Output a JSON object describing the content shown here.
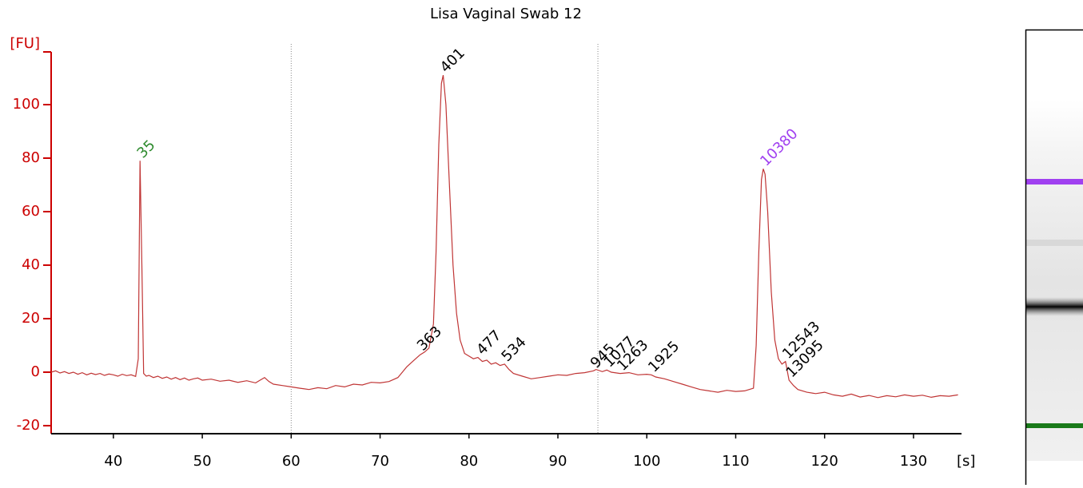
{
  "chart_data": {
    "type": "line",
    "title": "Lisa Vaginal Swab 12",
    "y_label": "[FU]",
    "x_label": "[s]",
    "color": "#c03535",
    "axis_color": "#cc0000",
    "xlim": [
      33,
      135.4
    ],
    "ylim": [
      -23,
      119.7
    ],
    "xticks": [
      40,
      50,
      60,
      70,
      80,
      90,
      100,
      110,
      120,
      130
    ],
    "yticks": [
      -20,
      0,
      20,
      40,
      60,
      80,
      100
    ],
    "reference_lines": [
      60,
      94.5
    ],
    "x": [
      33,
      33.5,
      34,
      34.5,
      35,
      35.5,
      36,
      36.5,
      37,
      37.5,
      38,
      38.5,
      39,
      39.5,
      40,
      40.5,
      41,
      41.5,
      42,
      42.5,
      42.8,
      43,
      43.2,
      43.4,
      43.7,
      44,
      44.5,
      45,
      45.5,
      46,
      46.5,
      47,
      47.5,
      48,
      48.5,
      49,
      49.5,
      50,
      51,
      52,
      53,
      54,
      55,
      56,
      56.5,
      57,
      57.5,
      58,
      59,
      60,
      61,
      62,
      63,
      64,
      65,
      66,
      67,
      68,
      69,
      70,
      71,
      72,
      72.5,
      73,
      73.5,
      74,
      74.5,
      75,
      75.5,
      76,
      76.3,
      76.6,
      76.9,
      77.1,
      77.4,
      77.8,
      78.2,
      78.6,
      79,
      79.5,
      80,
      80.5,
      81,
      81.5,
      82,
      82.5,
      83,
      83.5,
      84,
      84.5,
      85,
      86,
      87,
      88,
      89,
      90,
      91,
      92,
      93,
      94,
      94.3,
      95,
      95.5,
      96,
      97,
      98,
      99,
      100,
      100.5,
      101,
      102,
      103,
      104,
      105,
      106,
      107,
      108,
      109,
      110,
      111,
      112,
      112.3,
      112.6,
      112.9,
      113.1,
      113.3,
      113.6,
      114,
      114.4,
      114.8,
      115.2,
      115.6,
      116,
      116.5,
      117,
      118,
      119,
      120,
      121,
      122,
      123,
      124,
      125,
      126,
      127,
      128,
      129,
      130,
      131,
      132,
      133,
      134,
      135
    ],
    "values": [
      0,
      0.5,
      -0.3,
      0.2,
      -0.5,
      0,
      -0.8,
      -0.2,
      -1,
      -0.4,
      -0.9,
      -0.5,
      -1.2,
      -0.7,
      -1,
      -1.5,
      -0.8,
      -1.3,
      -1,
      -1.6,
      5,
      79,
      40,
      -0.5,
      -1.5,
      -1.2,
      -2,
      -1.5,
      -2.3,
      -1.8,
      -2.6,
      -2,
      -2.8,
      -2.2,
      -3,
      -2.5,
      -2.2,
      -3,
      -2.6,
      -3.4,
      -3,
      -3.8,
      -3.2,
      -4,
      -3,
      -2,
      -3.5,
      -4.5,
      -5,
      -5.5,
      -6,
      -6.5,
      -5.8,
      -6.2,
      -5,
      -5.5,
      -4.5,
      -4.8,
      -3.8,
      -4,
      -3.5,
      -2,
      0,
      2,
      3.5,
      5,
      6.5,
      7.5,
      9,
      18,
      45,
      85,
      108,
      111,
      100,
      70,
      40,
      22,
      12,
      7,
      6,
      5,
      5.5,
      4,
      4.5,
      3,
      3.5,
      2.5,
      3,
      1,
      -0.5,
      -1.5,
      -2.5,
      -2,
      -1.5,
      -1,
      -1.2,
      -0.5,
      -0.2,
      0.5,
      1,
      0.2,
      0.8,
      0,
      -0.5,
      -0.2,
      -1,
      -0.8,
      -1,
      -1.8,
      -2.5,
      -3.5,
      -4.5,
      -5.5,
      -6.5,
      -7,
      -7.5,
      -6.8,
      -7.2,
      -7,
      -6,
      10,
      45,
      72,
      76,
      74,
      60,
      30,
      12,
      5,
      3,
      4,
      -3,
      -5,
      -6.5,
      -7.5,
      -8,
      -7.5,
      -8.5,
      -9,
      -8.2,
      -9.3,
      -8.7,
      -9.5,
      -8.8,
      -9.2,
      -8.5,
      -9,
      -8.6,
      -9.4,
      -8.8,
      -9,
      -8.5
    ],
    "peaks": [
      {
        "label": "35",
        "x": 43,
        "y": 79,
        "color": "#2e8b2e"
      },
      {
        "label": "401",
        "x": 77.1,
        "y": 111,
        "color": "#000000"
      },
      {
        "label": "363",
        "x": 74.5,
        "y": 7,
        "color": "#000000"
      },
      {
        "label": "477",
        "x": 81.2,
        "y": 5.5,
        "color": "#000000"
      },
      {
        "label": "534",
        "x": 84,
        "y": 3,
        "color": "#000000"
      },
      {
        "label": "945",
        "x": 94,
        "y": 0.5,
        "color": "#000000"
      },
      {
        "label": "1077",
        "x": 95.5,
        "y": 0.8,
        "color": "#000000"
      },
      {
        "label": "1263",
        "x": 97,
        "y": -0.5,
        "color": "#000000"
      },
      {
        "label": "1925",
        "x": 100.5,
        "y": -1,
        "color": "#000000"
      },
      {
        "label": "10380",
        "x": 113.1,
        "y": 76,
        "color": "#a040f0"
      },
      {
        "label": "12543",
        "x": 115.6,
        "y": 4,
        "color": "#000000"
      },
      {
        "label": "13095",
        "x": 116,
        "y": -3,
        "color": "#000000"
      }
    ]
  }
}
